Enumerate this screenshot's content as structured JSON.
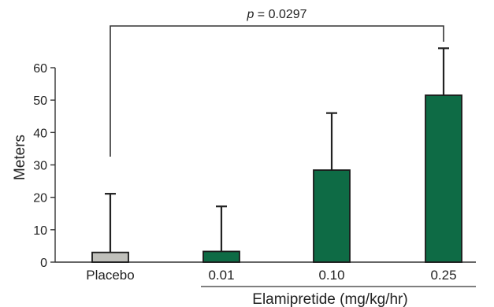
{
  "chart_data": {
    "type": "bar",
    "categories": [
      "Placebo",
      "0.01",
      "0.10",
      "0.25"
    ],
    "values": [
      3,
      3.3,
      28.4,
      51.5
    ],
    "error_upper": [
      21.1,
      17.2,
      46,
      66
    ],
    "colors": [
      "#c0c0bb",
      "#0e6b45",
      "#0e6b45",
      "#0e6b45"
    ],
    "ylabel": "Meters",
    "group_label": "Elamipretide (mg/kg/hr)",
    "ylim": [
      0,
      60
    ],
    "yticks": [
      0,
      10,
      20,
      30,
      40,
      50,
      60
    ],
    "significance": {
      "p_label": "p",
      "p_value_text": " = 0.0297",
      "from_category": "Placebo",
      "to_category": "0.25"
    },
    "grid": false
  }
}
